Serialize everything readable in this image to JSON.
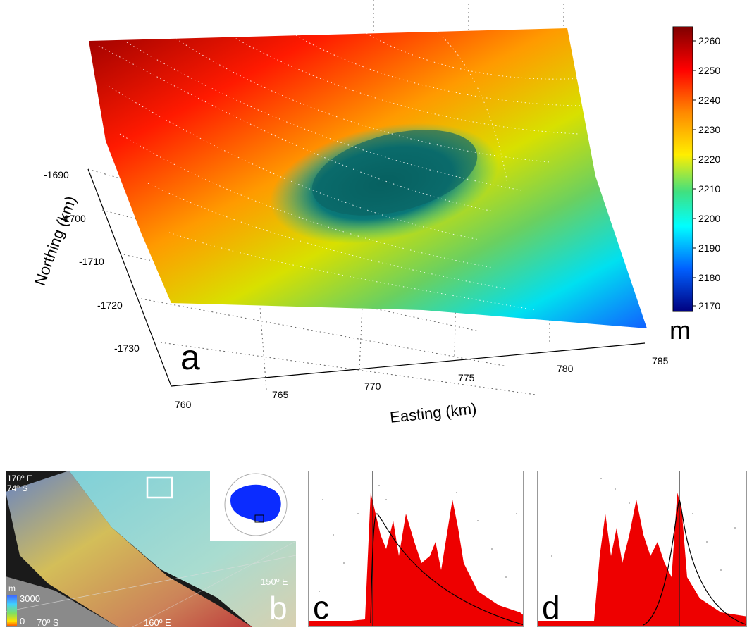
{
  "panel_a": {
    "letter": "a",
    "xlabel": "Easting (km)",
    "ylabel": "Northing (km)",
    "easting_ticks": [
      "760",
      "765",
      "770",
      "775",
      "780",
      "785"
    ],
    "northing_ticks": [
      "-1690",
      "-1700",
      "-1710",
      "-1720",
      "-1730"
    ],
    "colorbar_ticks": [
      "2260",
      "2250",
      "2240",
      "2230",
      "2220",
      "2210",
      "2200",
      "2190",
      "2180",
      "2170"
    ],
    "colorbar_unit": "m",
    "colors": [
      "#7f0000",
      "#ff0000",
      "#ff8800",
      "#ffff00",
      "#00d0a0",
      "#00ffff",
      "#0060ff",
      "#00007f"
    ]
  },
  "panel_b": {
    "letter": "b",
    "labels": {
      "lon170": "170º E",
      "lat74": "74º S",
      "lon150": "150º E",
      "lat70": "70º S",
      "lon160": "160º E"
    },
    "legend_unit": "m",
    "legend_max": "3000",
    "legend_min": "0"
  },
  "panel_c": {
    "letter": "c"
  },
  "panel_d": {
    "letter": "d"
  }
}
